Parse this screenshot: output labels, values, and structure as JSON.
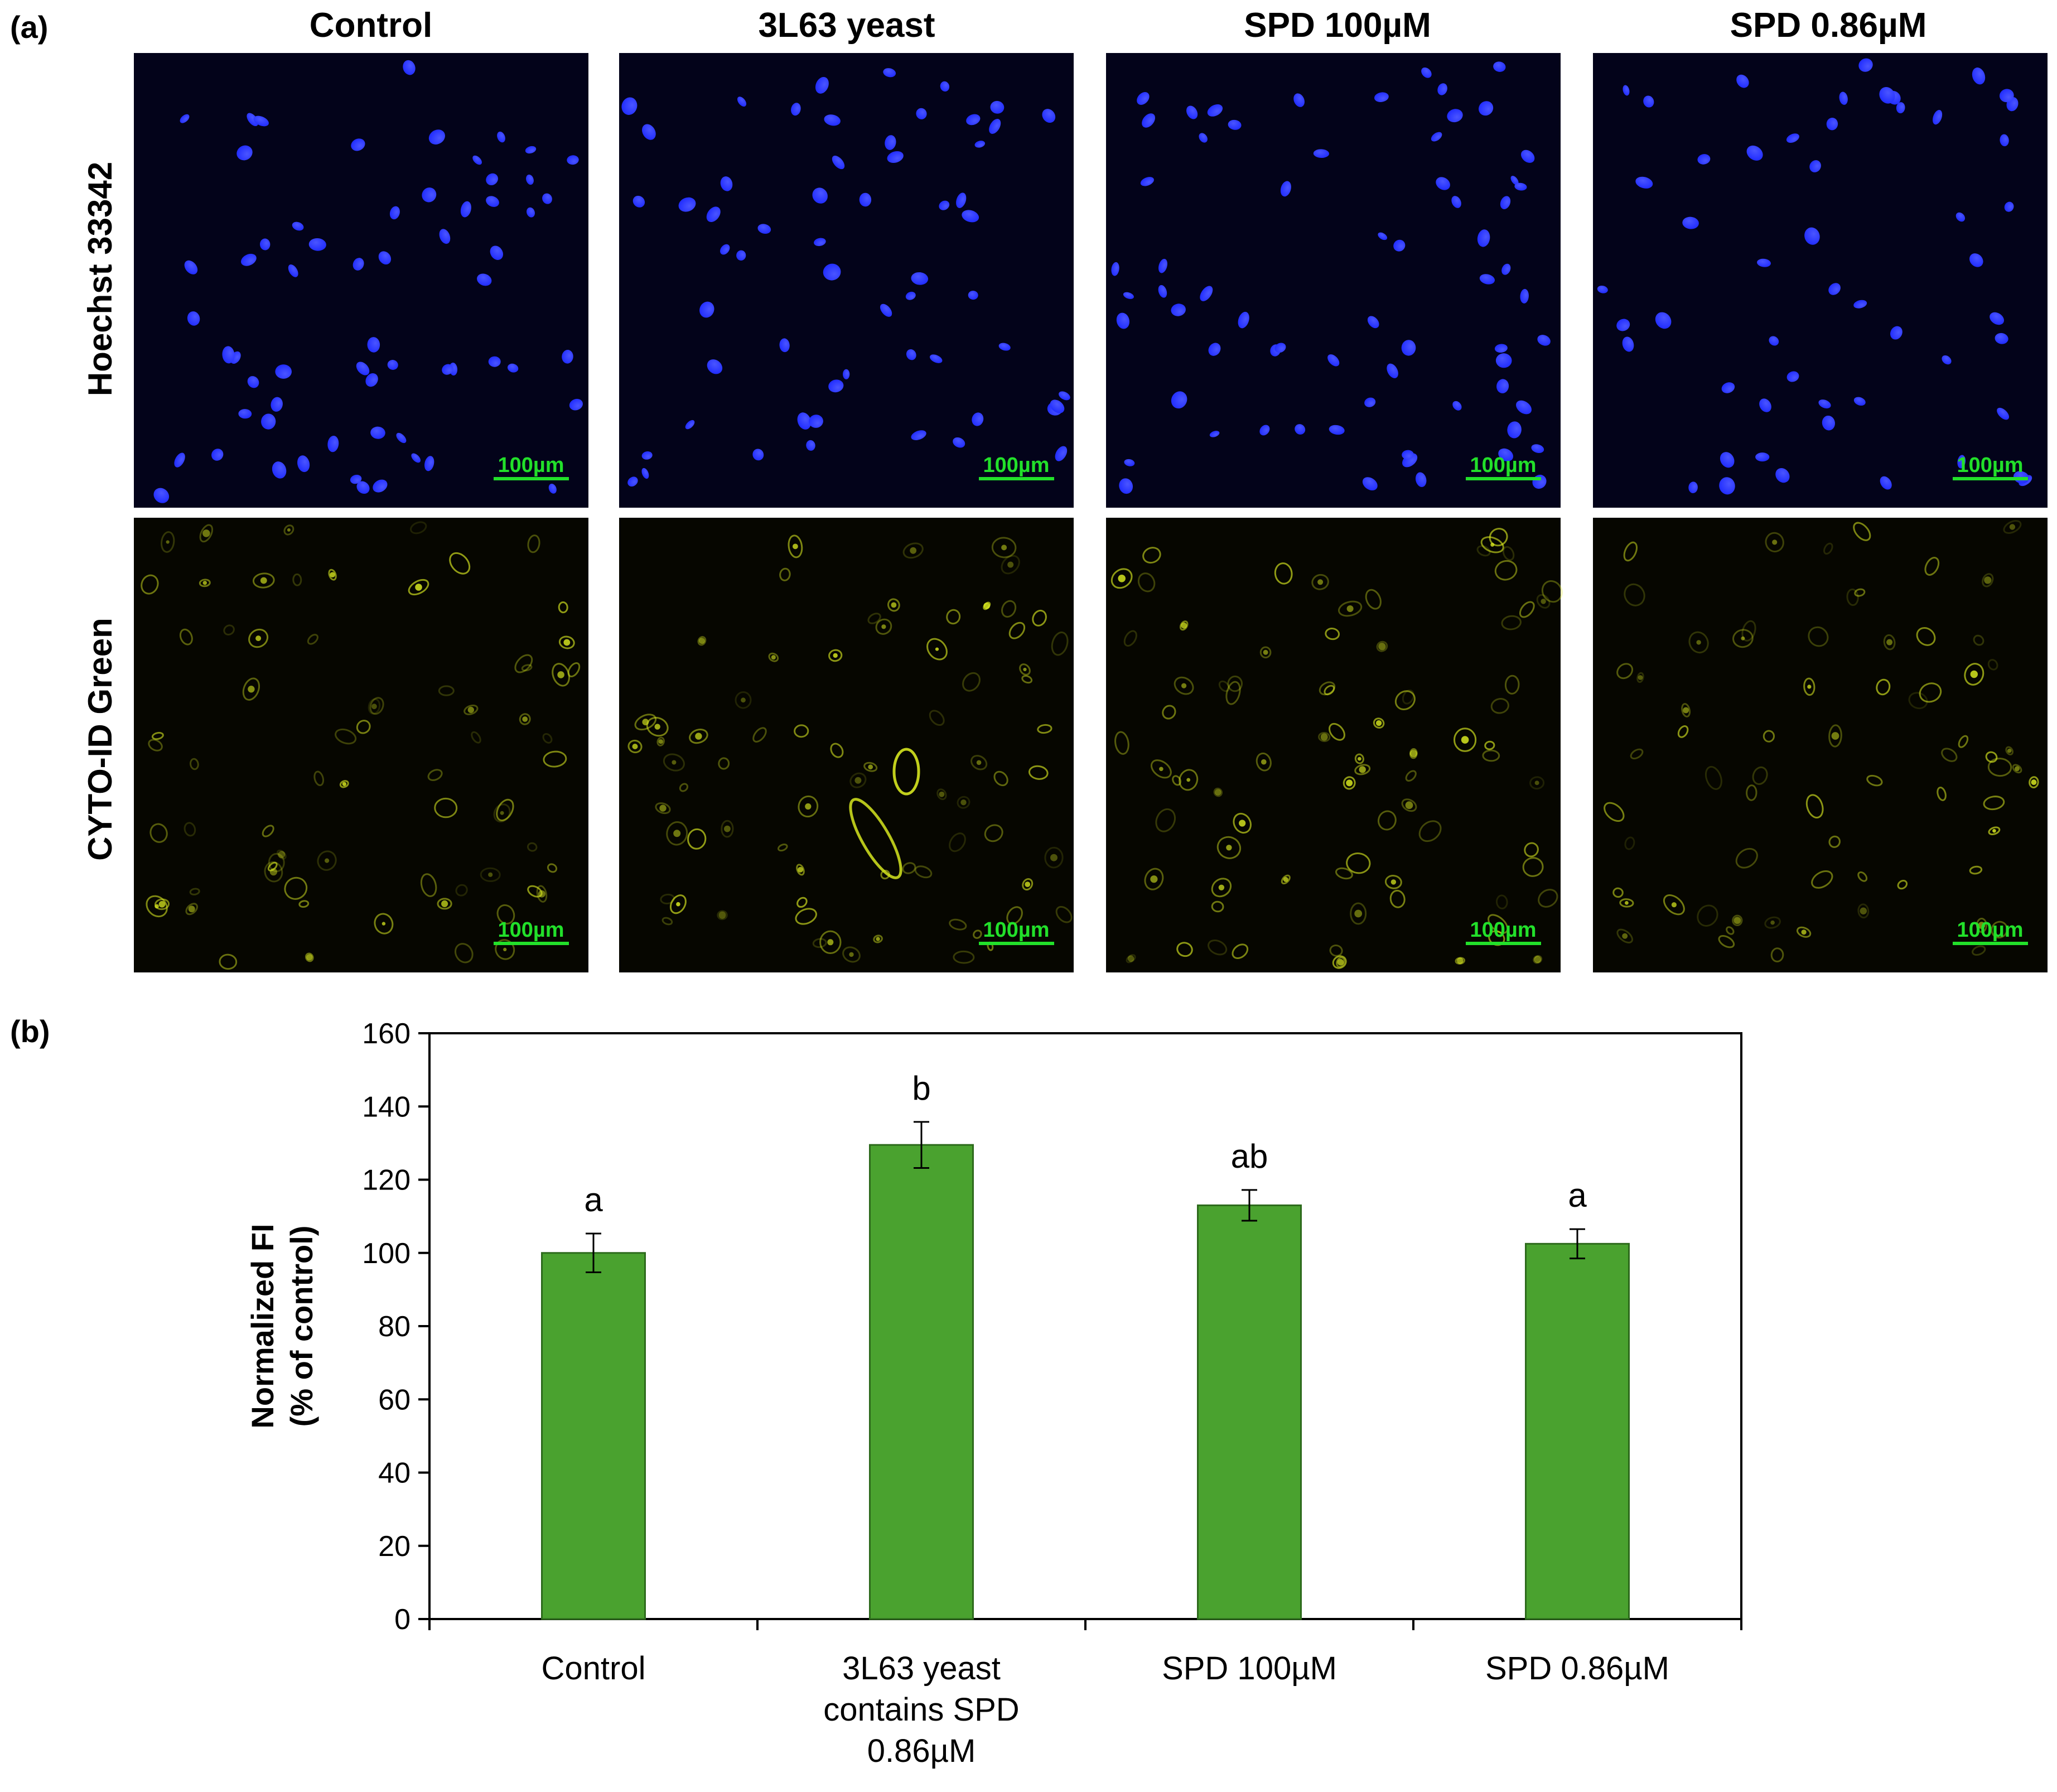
{
  "panel_a": {
    "label": "(a)",
    "column_titles": [
      "Control",
      "3L63 yeast",
      "SPD 100µM",
      "SPD 0.86µM"
    ],
    "row_labels": [
      "Hoechst 33342",
      "CYTO-ID Green"
    ],
    "scale_bar": "100µm",
    "colors": {
      "nuclei": "#1f2bff",
      "nuclei_background": "#03031a",
      "cytoid": "#d6e61f",
      "cytoid_background": "#060600",
      "scale_bar": "#22e02a"
    }
  },
  "panel_b": {
    "label": "(b)"
  },
  "chart_data": {
    "type": "bar",
    "categories": [
      "Control",
      "3L63 yeast contains SPD 0.86µM",
      "SPD 100µM",
      "SPD 0.86µM"
    ],
    "category_lines": [
      [
        "Control"
      ],
      [
        "3L63 yeast",
        "contains SPD",
        "0.86µM"
      ],
      [
        "SPD 100µM"
      ],
      [
        "SPD 0.86µM"
      ]
    ],
    "values": [
      100,
      129.5,
      113,
      102.5
    ],
    "errors": [
      5.3,
      6.3,
      4.2,
      4.0
    ],
    "annotations": [
      "a",
      "b",
      "ab",
      "a"
    ],
    "ylabel_lines": [
      "Normalized FI",
      "(% of control)"
    ],
    "ylim": [
      0,
      160
    ],
    "yticks": [
      0,
      20,
      40,
      60,
      80,
      100,
      120,
      140,
      160
    ],
    "grid": false,
    "bar_color": "#4aa22f",
    "bar_edge_color": "#2d6a1c"
  }
}
